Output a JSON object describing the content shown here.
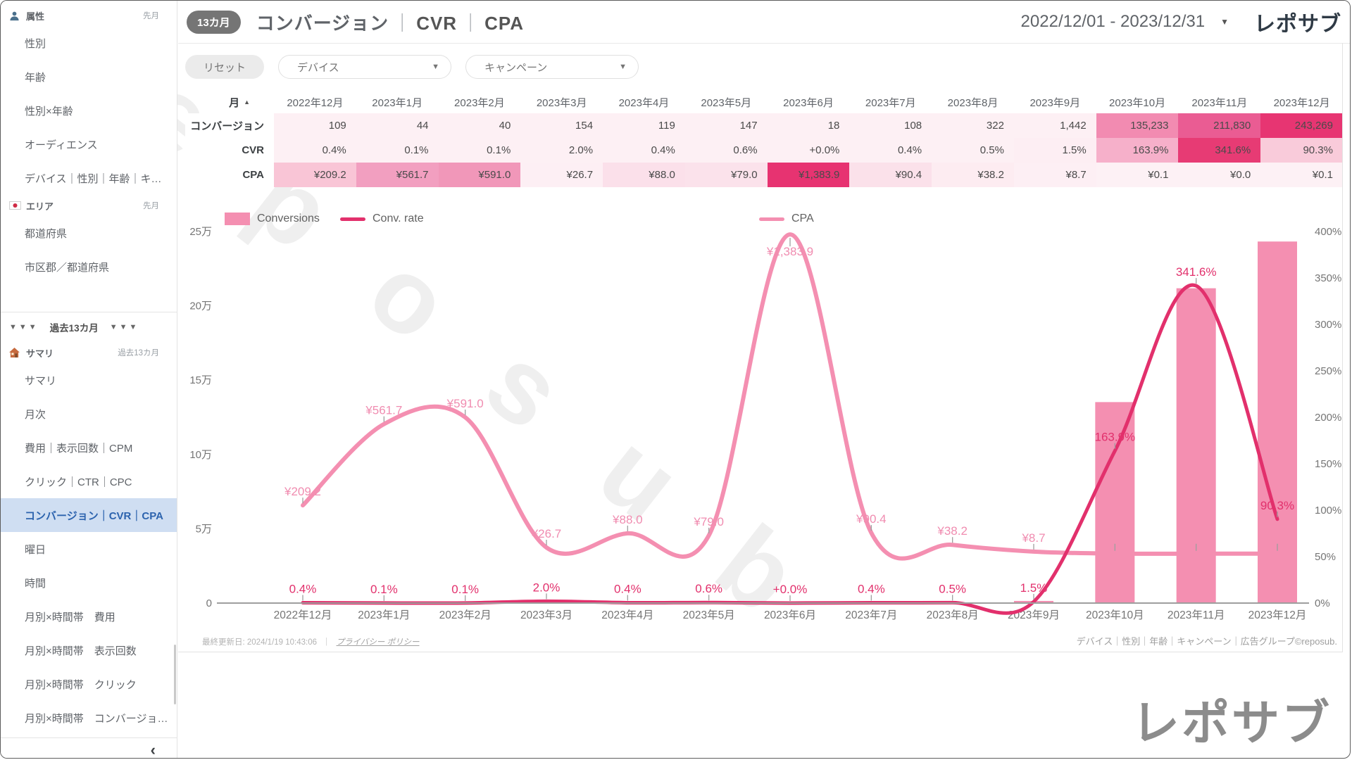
{
  "header": {
    "badge": "13カ月",
    "title_main": "コンバージョン",
    "title_sep": "｜",
    "title_cvr": "CVR",
    "title_cpa": "CPA",
    "date_range": "2022/12/01 - 2023/12/31",
    "logo": "レポサブ"
  },
  "filters": {
    "reset": "リセット",
    "device": "デバイス",
    "campaign": "キャンペーン"
  },
  "sidebar": {
    "entries": [
      {
        "type": "section",
        "icon": "person-icon",
        "label": "属性",
        "right": "先月"
      },
      {
        "type": "item",
        "label": "性別"
      },
      {
        "type": "item",
        "label": "年齢"
      },
      {
        "type": "item",
        "label": "性別×年齢"
      },
      {
        "type": "item",
        "label": "オーディエンス"
      },
      {
        "type": "item",
        "label": "デバイス｜性別｜年齢｜キ…"
      },
      {
        "type": "section",
        "icon": "japan-flag-icon",
        "label": "エリア",
        "right": "先月"
      },
      {
        "type": "item",
        "label": "都道府県"
      },
      {
        "type": "item",
        "label": "市区郡／都道府県"
      },
      {
        "type": "divider",
        "gap": 40
      },
      {
        "type": "banner",
        "tri": "▼▼▼",
        "label": "過去13カ月"
      },
      {
        "type": "section",
        "icon": "house-icon",
        "label": "サマリ",
        "right": "過去13カ月"
      },
      {
        "type": "item",
        "label": "サマリ"
      },
      {
        "type": "item",
        "label": "月次"
      },
      {
        "type": "item",
        "label": "費用｜表示回数｜CPM"
      },
      {
        "type": "item",
        "label": "クリック｜CTR｜CPC"
      },
      {
        "type": "item",
        "label": "コンバージョン｜CVR｜CPA",
        "selected": true
      },
      {
        "type": "item",
        "label": "曜日"
      },
      {
        "type": "item",
        "label": "時間"
      },
      {
        "type": "item",
        "label": "月別×時間帯　費用"
      },
      {
        "type": "item",
        "label": "月別×時間帯　表示回数"
      },
      {
        "type": "item",
        "label": "月別×時間帯　クリック"
      },
      {
        "type": "item",
        "label": "月別×時間帯　コンバージョ…"
      },
      {
        "type": "divider",
        "gap": 4
      },
      {
        "type": "collapse",
        "glyph": "‹"
      }
    ]
  },
  "table": {
    "sort_label": "月",
    "sort_icon": "▲",
    "months": [
      "2022年12月",
      "2023年1月",
      "2023年2月",
      "2023年3月",
      "2023年4月",
      "2023年5月",
      "2023年6月",
      "2023年7月",
      "2023年8月",
      "2023年9月",
      "2023年10月",
      "2023年11月",
      "2023年12月"
    ],
    "rows": [
      {
        "label": "コンバージョン",
        "values": [
          "109",
          "44",
          "40",
          "154",
          "119",
          "147",
          "18",
          "108",
          "322",
          "1,442",
          "135,233",
          "211,830",
          "243,269"
        ],
        "bgs": [
          "#fdf0f4",
          "#fdf0f4",
          "#fdf0f4",
          "#fdf0f4",
          "#fdf0f4",
          "#fdf0f4",
          "#fdf0f4",
          "#fdf0f4",
          "#fdf0f4",
          "#fdf0f4",
          "#f28bb1",
          "#ea5c93",
          "#e73572"
        ]
      },
      {
        "label": "CVR",
        "values": [
          "0.4%",
          "0.1%",
          "0.1%",
          "2.0%",
          "0.4%",
          "0.6%",
          "+0.0%",
          "0.4%",
          "0.5%",
          "1.5%",
          "163.9%",
          "341.6%",
          "90.3%"
        ],
        "bgs": [
          "#fdf0f4",
          "#fdf0f4",
          "#fdf0f4",
          "#fdf0f4",
          "#fdf0f4",
          "#fdf0f4",
          "#fdf0f4",
          "#fdf0f4",
          "#fdf0f4",
          "#fdeef3",
          "#f6b0ca",
          "#e73b74",
          "#f9cbda"
        ]
      },
      {
        "label": "CPA",
        "values": [
          "¥209.2",
          "¥561.7",
          "¥591.0",
          "¥26.7",
          "¥88.0",
          "¥79.0",
          "¥1,383.9",
          "¥90.4",
          "¥38.2",
          "¥8.7",
          "¥0.1",
          "¥0.0",
          "¥0.1"
        ],
        "bgs": [
          "#f9c5d6",
          "#f29fc0",
          "#f197b9",
          "#fdeff4",
          "#fbe0ea",
          "#fbe2eb",
          "#e73371",
          "#fbe1ea",
          "#fdecf1",
          "#fdeff4",
          "#fdf1f5",
          "#fdf1f5",
          "#fdf1f5"
        ]
      }
    ]
  },
  "chart_data": {
    "type": "combo-bar-line",
    "categories": [
      "2022年12月",
      "2023年1月",
      "2023年2月",
      "2023年3月",
      "2023年4月",
      "2023年5月",
      "2023年6月",
      "2023年7月",
      "2023年8月",
      "2023年9月",
      "2023年10月",
      "2023年11月",
      "2023年12月"
    ],
    "series": [
      {
        "name": "Conversions",
        "type": "bar",
        "axis": "left",
        "color": "#f48fb1",
        "values": [
          109,
          44,
          40,
          154,
          119,
          147,
          18,
          108,
          322,
          1442,
          135233,
          211830,
          243269
        ]
      },
      {
        "name": "Conv. rate",
        "type": "line",
        "axis": "right",
        "color": "#e2306c",
        "values": [
          0.4,
          0.1,
          0.1,
          2.0,
          0.4,
          0.6,
          0.0,
          0.4,
          0.5,
          1.5,
          163.9,
          341.6,
          90.3
        ],
        "labels": [
          "0.4%",
          "0.1%",
          "0.1%",
          "2.0%",
          "0.4%",
          "0.6%",
          "+0.0%",
          "0.4%",
          "0.5%",
          "1.5%",
          "163.9%",
          "341.6%",
          "90.3%"
        ]
      },
      {
        "name": "CPA",
        "type": "line",
        "axis": "hidden",
        "color": "#f48fb1",
        "label_color": "#f08cb0",
        "values": [
          209.2,
          561.7,
          591.0,
          26.7,
          88.0,
          79.0,
          1383.9,
          90.4,
          38.2,
          8.7,
          0.1,
          0.0,
          0.1
        ],
        "labels": [
          "¥209.2",
          "¥561.7",
          "¥591.0",
          "¥26.7",
          "¥88.0",
          "¥79.0",
          "¥1,383.9",
          "¥90.4",
          "¥38.2",
          "¥8.7",
          "",
          "",
          ""
        ],
        "axis_range": [
          -214.3,
          1396.4
        ]
      }
    ],
    "axes": {
      "left_ticks": [
        "0",
        "5万",
        "10万",
        "15万",
        "20万",
        "25万"
      ],
      "left_max": 250000,
      "right_ticks": [
        "0%",
        "50%",
        "100%",
        "150%",
        "200%",
        "250%",
        "300%",
        "350%",
        "400%"
      ],
      "right_max": 400,
      "grid": false,
      "legend_position": "top"
    }
  },
  "footer": {
    "updated": "最終更新日: 2024/1/19 10:43:06",
    "sep": "｜",
    "privacy": "プライバシー ポリシー",
    "dims": "デバイス｜性別｜年齢｜キャンペーン｜広告グループ©reposub."
  },
  "bottom_logo": "レポサブ",
  "watermark": "reposub"
}
